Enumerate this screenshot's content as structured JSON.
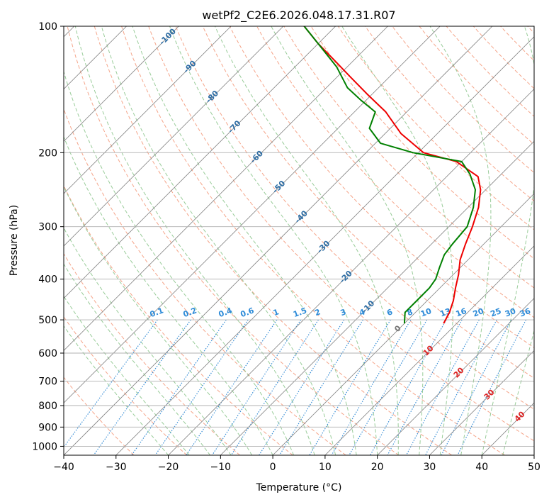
{
  "chart_data": {
    "type": "line",
    "subtype": "skew-t log-p diagram",
    "title": "wetPf2_C2E6.2026.048.17.31.R07",
    "xlabel": "Temperature (°C)",
    "ylabel": "Pressure (hPa)",
    "xlim": [
      -40,
      50
    ],
    "ylim": [
      1050,
      100
    ],
    "y_scale": "log",
    "grid": true,
    "x_ticks": [
      -40,
      -30,
      -20,
      -10,
      0,
      10,
      20,
      30,
      40,
      50
    ],
    "y_ticks": [
      100,
      200,
      300,
      400,
      500,
      600,
      700,
      800,
      900,
      1000
    ],
    "colors": {
      "temperature": "#ee0000",
      "dewpoint": "#008000",
      "skewed_isotherms": "#808080",
      "isobars": "#b0b0b0",
      "dry_adiabats": "#f5a58a",
      "moist_adiabats": "#99cc99",
      "mixing_ratio": "#3a8fd6",
      "isotherm_labels": "#2e6da4",
      "mixing_labels": "#2d8bd8",
      "moist_labels_red": "#dd2222",
      "moist_labels_gray": "#777777"
    },
    "series": [
      {
        "key": "temperature",
        "x": [
          7.5,
          6.5,
          5.0,
          3.0,
          1.0,
          -1.5,
          -3.5,
          -5.5,
          -8.0,
          -11.0,
          -14.0,
          -21.0,
          -29.0,
          -37.0,
          -44.0,
          -51.0,
          -57.5,
          -64.0,
          -70.0,
          -76.0
        ],
        "y": [
          510,
          480,
          450,
          420,
          390,
          360,
          330,
          300,
          270,
          245,
          228,
          210,
          200,
          180,
          160,
          145,
          132,
          120,
          110,
          100
        ]
      },
      {
        "key": "dewpoint",
        "x": [
          0.0,
          -2.0,
          -2.0,
          -2.0,
          -2.5,
          -4.0,
          -5.5,
          -6.0,
          -6.5,
          -9.0,
          -12.0,
          -16.0,
          -20.0,
          -31.0,
          -39.0,
          -44.0,
          -46.0,
          -51.0,
          -56.0,
          -62.0,
          -70.0,
          -76.0
        ],
        "y": [
          510,
          480,
          450,
          420,
          400,
          375,
          350,
          330,
          300,
          270,
          245,
          225,
          210,
          200,
          190,
          175,
          160,
          150,
          140,
          125,
          110,
          100
        ]
      }
    ],
    "isotherm_labels": [
      "-100",
      "-90",
      "-80",
      "-70",
      "-60",
      "-50",
      "-40",
      "-30",
      "-20",
      "-10"
    ],
    "mixing_ratio_labels": [
      "0.1",
      "0.2",
      "0.4",
      "0.6",
      "1",
      "1.5",
      "2",
      "3",
      "4",
      "6",
      "8",
      "10",
      "13",
      "16",
      "20",
      "25",
      "30",
      "36"
    ],
    "moist_adiabat_labels": [
      "0",
      "10",
      "20",
      "30",
      "40"
    ]
  }
}
